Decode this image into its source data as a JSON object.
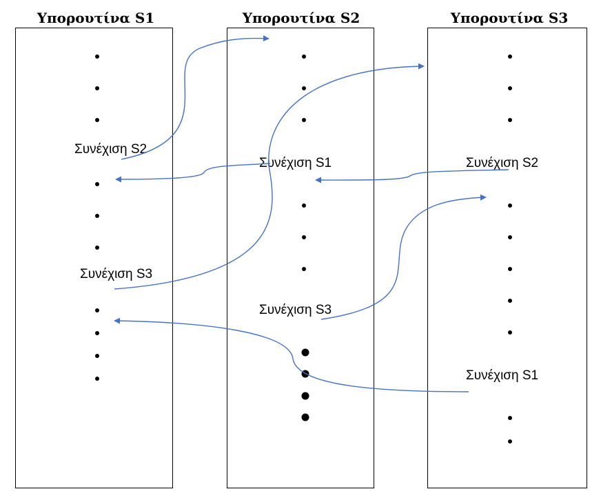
{
  "columns": [
    {
      "title": "Υπορουτίνα S1"
    },
    {
      "title": "Υπορουτίνα S2"
    },
    {
      "title": "Υπορουτίνα S3"
    }
  ],
  "labels": {
    "s1_resume_s2": "Συνέχιση S2",
    "s1_resume_s3": "Συνέχιση S3",
    "s2_resume_s1": "Συνέχιση S1",
    "s2_resume_s3": "Συνέχιση S3",
    "s3_resume_s2": "Συνέχιση S2",
    "s3_resume_s1": "Συνέχιση S1"
  },
  "colors": {
    "arrow": "#4472C4",
    "border": "#000000",
    "text": "#000000"
  }
}
